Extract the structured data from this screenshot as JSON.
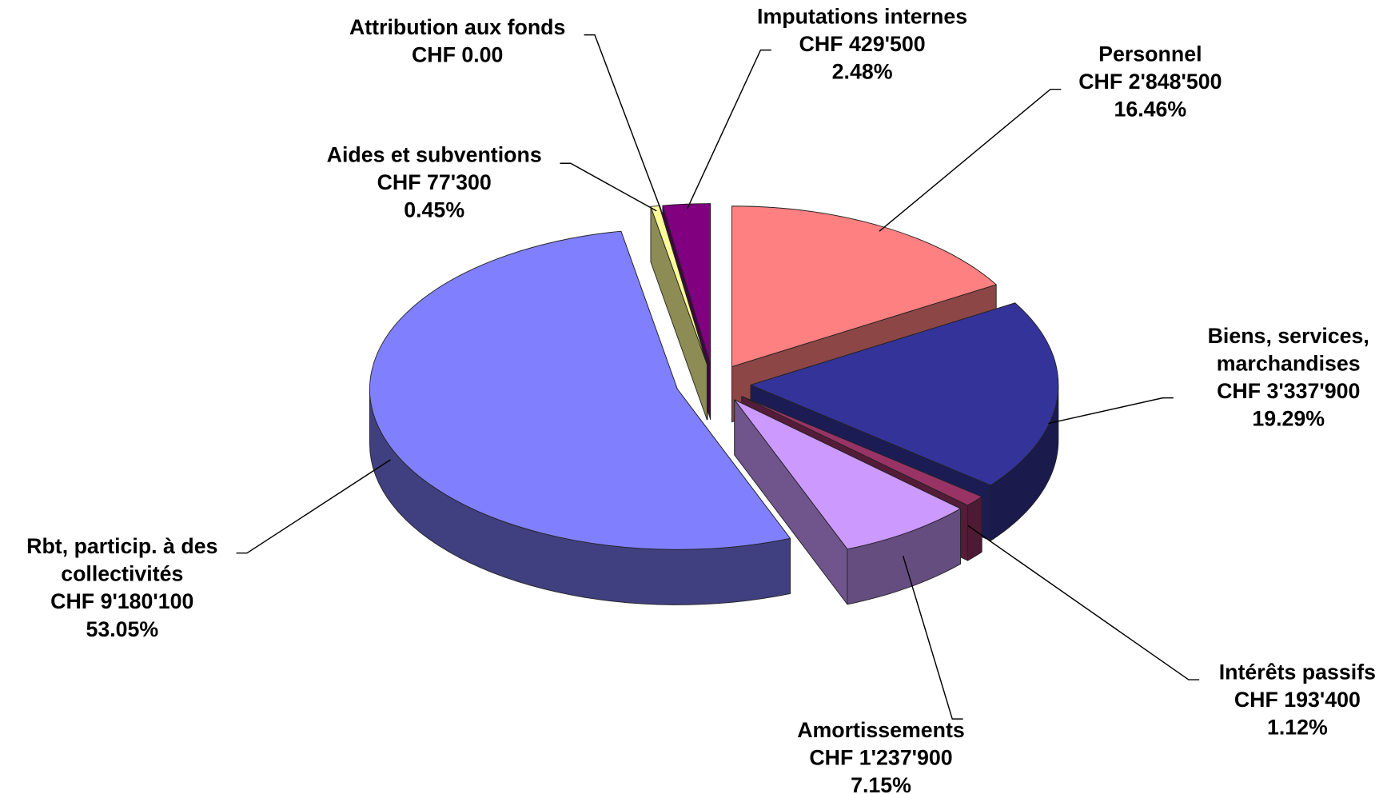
{
  "chart_data": {
    "type": "pie",
    "categories": [
      [
        "Personnel"
      ],
      [
        "Biens, services,",
        "marchandises"
      ],
      [
        "Intérêts passifs"
      ],
      [
        "Amortissements"
      ],
      [
        "Rbt, particip. à des",
        "collectivités"
      ],
      [
        "Aides et subventions"
      ],
      [
        "Attribution aux fonds"
      ],
      [
        "Imputations internes"
      ]
    ],
    "values": [
      2848500,
      3337900,
      193400,
      1237900,
      9180100,
      77300,
      0,
      429500
    ],
    "value_labels": [
      "CHF 2'848'500",
      "CHF 3'337'900",
      "CHF 193'400",
      "CHF 1'237'900",
      "CHF 9'180'100",
      "CHF 77'300",
      "CHF 0.00",
      "CHF 429'500"
    ],
    "percent_labels": [
      "16.46%",
      "19.29%",
      "1.12%",
      "7.15%",
      "53.05%",
      "0.45%",
      null,
      "2.48%"
    ],
    "colors": [
      "#ff8080",
      "#333399",
      "#993366",
      "#cc99ff",
      "#8080ff",
      "#ffff99",
      "#339999",
      "#800080"
    ]
  }
}
